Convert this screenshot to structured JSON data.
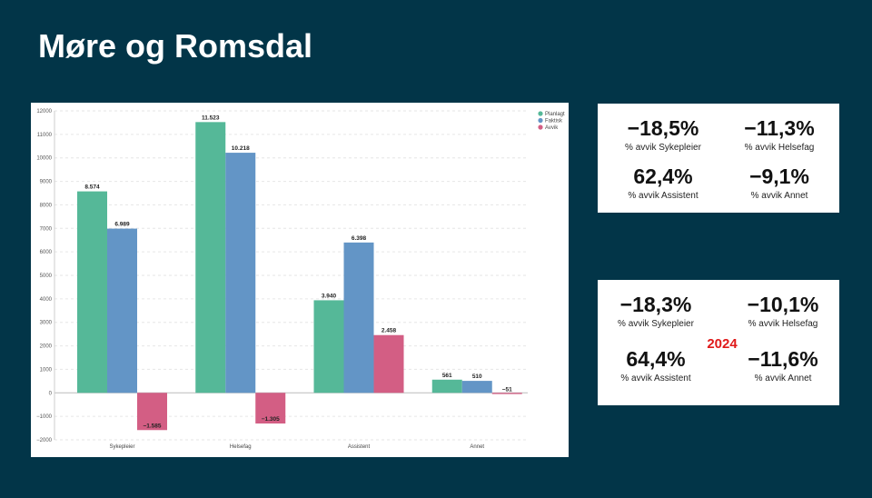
{
  "page": {
    "title": "Møre og Romsdal"
  },
  "chart_data": {
    "type": "bar",
    "categories": [
      "Sykepleier",
      "Helsefag",
      "Assistent",
      "Annet"
    ],
    "series": [
      {
        "name": "Planlagt",
        "color": "#55b898",
        "values": [
          8574,
          11523,
          3940,
          561
        ],
        "labels": [
          "8.574",
          "11.523",
          "3.940",
          "561"
        ]
      },
      {
        "name": "Faktisk",
        "color": "#6395c6",
        "values": [
          6989,
          10218,
          6398,
          510
        ],
        "labels": [
          "6.989",
          "10.218",
          "6.398",
          "510"
        ]
      },
      {
        "name": "Avvik",
        "color": "#d35e84",
        "values": [
          -1585,
          -1305,
          2458,
          -51
        ],
        "labels": [
          "−1.585",
          "−1.305",
          "2.458",
          "−51"
        ]
      }
    ],
    "ylim": [
      -2000,
      12000
    ],
    "yticks": [
      12000,
      11000,
      10000,
      9000,
      8000,
      7000,
      6000,
      5000,
      4000,
      3000,
      2000,
      1000,
      0,
      -1000,
      -2000
    ],
    "ytick_labels": [
      "12000",
      "11000",
      "10000",
      "9000",
      "8000",
      "7000",
      "6000",
      "5000",
      "4000",
      "3000",
      "2000",
      "1000",
      "0",
      "−1000",
      "−2000"
    ],
    "grid": true,
    "legend_position": "top-right"
  },
  "kpis_current": [
    {
      "value": "−18,5%",
      "label": "% avvik Sykepleier"
    },
    {
      "value": "−11,3%",
      "label": "% avvik Helsefag"
    },
    {
      "value": "62,4%",
      "label": "% avvik Assistent"
    },
    {
      "value": "−9,1%",
      "label": "% avvik Annet"
    }
  ],
  "kpis_2024": {
    "year": "2024",
    "year_color": "#e01a1a",
    "items": [
      {
        "value": "−18,3%",
        "label": "% avvik Sykepleier"
      },
      {
        "value": "−10,1%",
        "label": "% avvik Helsefag"
      },
      {
        "value": "64,4%",
        "label": "% avvik Assistent"
      },
      {
        "value": "−11,6%",
        "label": "% avvik Annet"
      }
    ]
  }
}
